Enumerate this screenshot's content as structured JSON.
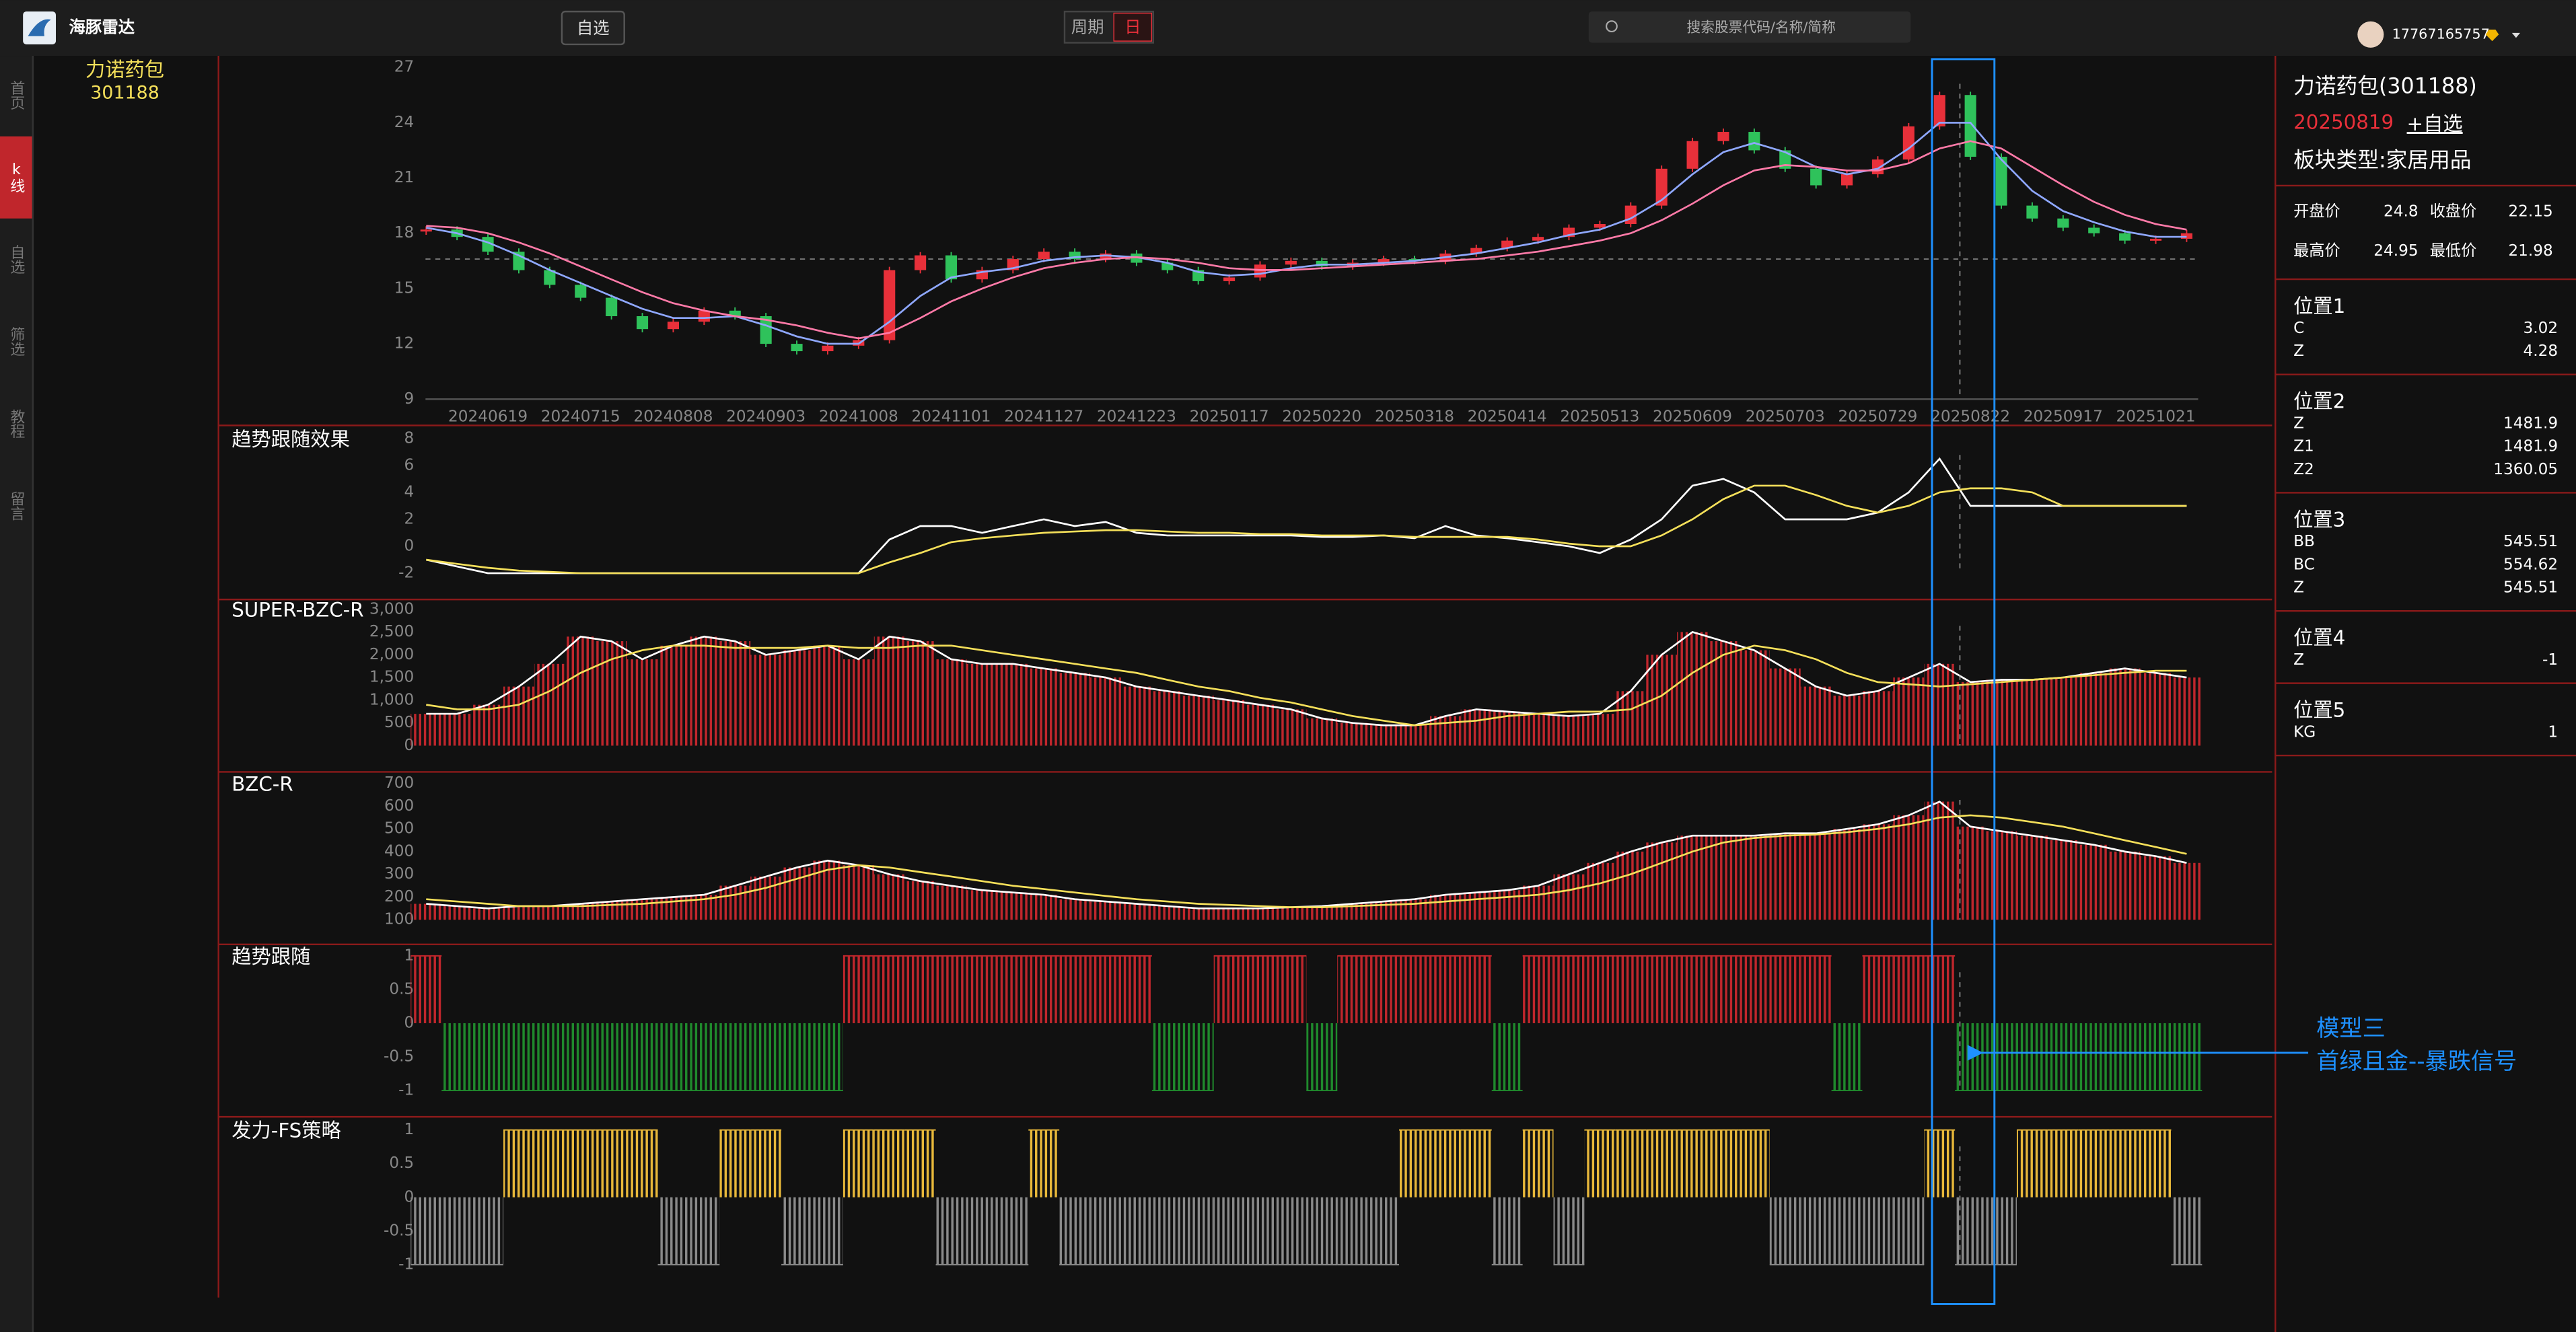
{
  "header": {
    "brand": "海豚雷达",
    "watchlist_button": "自选",
    "period_label": "周期",
    "period_value": "日",
    "search_placeholder": "搜索股票代码/名称/简称",
    "user": "17767165757"
  },
  "nav": [
    "首页",
    "k线",
    "自选",
    "筛选",
    "教程",
    "留言"
  ],
  "stock": {
    "name": "力诺药包",
    "code": "301188"
  },
  "info": {
    "title": "力诺药包(301188)",
    "date": "20250819",
    "add": "+自选",
    "sector": "板块类型:家居用品",
    "quote": [
      [
        "开盘价",
        24.8,
        "收盘价",
        22.15
      ],
      [
        "最高价",
        24.95,
        "最低价",
        21.98
      ]
    ],
    "positions": [
      {
        "name": "位置1",
        "rows": [
          [
            "C",
            3.02
          ],
          [
            "Z",
            4.28
          ]
        ]
      },
      {
        "name": "位置2",
        "rows": [
          [
            "Z",
            1481.9
          ],
          [
            "Z1",
            1481.9
          ],
          [
            "Z2",
            1360.05
          ]
        ]
      },
      {
        "name": "位置3",
        "rows": [
          [
            "BB",
            545.51
          ],
          [
            "BC",
            554.62
          ],
          [
            "Z",
            545.51
          ]
        ]
      },
      {
        "name": "位置4",
        "rows": [
          [
            "Z",
            -1
          ]
        ]
      },
      {
        "name": "位置5",
        "rows": [
          [
            "KG",
            1
          ]
        ]
      }
    ]
  },
  "annotation": {
    "lines": [
      "模型三",
      "首绿且金--暴跌信号"
    ]
  },
  "chart_data": [
    {
      "type": "candlestick",
      "ylim": [
        9,
        27
      ],
      "yticks": [
        9,
        12,
        15,
        18,
        21,
        24,
        27
      ],
      "hline": 16.6,
      "color_up": "#e8303a",
      "color_down": "#2fc25b",
      "categories": [
        null,
        null,
        "20240619",
        null,
        null,
        "20240715",
        null,
        null,
        "20240808",
        null,
        null,
        "20240903",
        null,
        null,
        "20241008",
        null,
        null,
        "20241101",
        null,
        null,
        "20241127",
        null,
        null,
        "20241223",
        null,
        null,
        "20250117",
        null,
        null,
        "20250220",
        null,
        null,
        "20250318",
        null,
        null,
        "20250414",
        null,
        null,
        "20250513",
        null,
        null,
        "20250609",
        null,
        null,
        "20250703",
        null,
        null,
        "20250729",
        null,
        null,
        "20250822",
        null,
        null,
        "20250917",
        null,
        null,
        "20251021",
        null
      ],
      "series": [
        {
          "values": [
            18.2,
            17.8,
            17.0,
            16.0,
            15.2,
            14.5,
            13.5,
            12.8,
            13.2,
            13.8,
            13.5,
            12.0,
            11.6,
            11.9,
            12.2,
            16.0,
            16.8,
            15.5,
            16.0,
            16.6,
            17.0,
            16.6,
            16.9,
            16.4,
            16.0,
            15.4,
            15.6,
            16.3,
            16.5,
            16.2,
            16.4,
            16.6,
            16.5,
            16.9,
            17.2,
            17.6,
            17.8,
            18.3,
            18.5,
            19.5,
            21.5,
            23.0,
            23.5,
            22.5,
            21.5,
            20.6,
            21.2,
            22.0,
            23.8,
            25.5,
            22.15,
            19.5,
            18.8,
            18.3,
            18.0,
            17.6,
            17.7,
            18.0
          ]
        },
        {
          "color": "#8fa8ff",
          "values": [
            18.3,
            18.0,
            17.5,
            16.8,
            16.0,
            15.3,
            14.6,
            13.9,
            13.4,
            13.4,
            13.5,
            13.0,
            12.4,
            12.0,
            12.0,
            13.2,
            14.6,
            15.6,
            15.9,
            16.1,
            16.5,
            16.7,
            16.8,
            16.7,
            16.4,
            15.9,
            15.7,
            15.8,
            16.1,
            16.3,
            16.3,
            16.4,
            16.5,
            16.7,
            16.9,
            17.2,
            17.5,
            17.9,
            18.2,
            18.8,
            19.8,
            21.2,
            22.4,
            22.9,
            22.4,
            21.6,
            21.2,
            21.5,
            22.6,
            24.0,
            24.0,
            22.0,
            20.3,
            19.2,
            18.6,
            18.1,
            17.8,
            17.8
          ]
        },
        {
          "color": "#ff7aa8",
          "values": [
            18.4,
            18.3,
            18.0,
            17.5,
            16.9,
            16.2,
            15.5,
            14.8,
            14.2,
            13.8,
            13.5,
            13.3,
            13.0,
            12.6,
            12.3,
            12.6,
            13.4,
            14.3,
            15.0,
            15.6,
            16.1,
            16.4,
            16.6,
            16.7,
            16.6,
            16.4,
            16.1,
            16.0,
            16.0,
            16.1,
            16.2,
            16.3,
            16.4,
            16.5,
            16.6,
            16.8,
            17.0,
            17.3,
            17.6,
            18.0,
            18.7,
            19.6,
            20.6,
            21.4,
            21.7,
            21.6,
            21.4,
            21.4,
            21.8,
            22.6,
            23.0,
            22.6,
            21.6,
            20.6,
            19.7,
            19.0,
            18.5,
            18.2
          ]
        }
      ]
    },
    {
      "type": "line",
      "title": "趋势跟随效果",
      "ylim": [
        -2,
        8
      ],
      "yticks": [
        -2,
        0,
        2,
        4,
        6,
        8
      ],
      "series": [
        {
          "color": "#ffffff",
          "values": [
            -1,
            -1.5,
            -2,
            -2,
            -2,
            -2,
            -2,
            -2,
            -2,
            -2,
            -2,
            -2,
            -2,
            -2,
            -2,
            0.5,
            1.5,
            1.5,
            1,
            1.5,
            2,
            1.5,
            1.8,
            1,
            0.8,
            0.8,
            0.8,
            0.8,
            0.8,
            0.7,
            0.7,
            0.8,
            0.6,
            1.5,
            0.8,
            0.6,
            0.3,
            0,
            -0.5,
            0.5,
            2,
            4.5,
            5,
            4,
            2,
            2,
            2,
            2.5,
            4,
            6.5,
            3,
            3,
            3,
            3,
            3,
            3,
            3,
            3
          ]
        },
        {
          "color": "#f5e05a",
          "values": [
            -1,
            -1.3,
            -1.6,
            -1.8,
            -1.9,
            -2,
            -2,
            -2,
            -2,
            -2,
            -2,
            -2,
            -2,
            -2,
            -2,
            -1.2,
            -0.5,
            0.3,
            0.6,
            0.8,
            1,
            1.1,
            1.2,
            1.2,
            1.1,
            1,
            1,
            0.9,
            0.9,
            0.8,
            0.8,
            0.8,
            0.7,
            0.7,
            0.7,
            0.7,
            0.5,
            0.2,
            0,
            0,
            0.8,
            2,
            3.5,
            4.5,
            4.5,
            3.8,
            3,
            2.5,
            3,
            4,
            4.3,
            4.3,
            4,
            3,
            3,
            3,
            3,
            3
          ]
        }
      ]
    },
    {
      "type": "bar",
      "title": "SUPER-BZC-R",
      "ylim": [
        0,
        3000
      ],
      "yticks": [
        0,
        500,
        {
          "value": 1000,
          "label": "1,000"
        },
        {
          "value": 1500,
          "label": "1,500"
        },
        {
          "value": 2000,
          "label": "2,000"
        },
        {
          "value": 2500,
          "label": "2,500"
        },
        {
          "value": 3000,
          "label": "3,000"
        }
      ],
      "bar_color": "#c0262c",
      "series": [
        {
          "color": "#ffffff",
          "values": [
            700,
            700,
            900,
            1300,
            1800,
            2400,
            2300,
            1900,
            2200,
            2400,
            2300,
            2000,
            2100,
            2200,
            1900,
            2400,
            2300,
            1900,
            1800,
            1800,
            1700,
            1600,
            1500,
            1300,
            1200,
            1100,
            1000,
            900,
            800,
            600,
            500,
            450,
            450,
            650,
            800,
            750,
            700,
            650,
            700,
            1200,
            2000,
            2500,
            2300,
            2100,
            1700,
            1300,
            1100,
            1200,
            1500,
            1800,
            1400,
            1450,
            1450,
            1500,
            1600,
            1700,
            1600,
            1500
          ]
        },
        {
          "color": "#f5e05a",
          "values": [
            900,
            800,
            800,
            900,
            1200,
            1600,
            1900,
            2100,
            2200,
            2200,
            2150,
            2150,
            2150,
            2200,
            2150,
            2150,
            2200,
            2200,
            2100,
            2000,
            1900,
            1800,
            1700,
            1600,
            1450,
            1300,
            1200,
            1050,
            950,
            800,
            650,
            550,
            450,
            500,
            550,
            650,
            700,
            750,
            750,
            800,
            1100,
            1600,
            2000,
            2200,
            2100,
            1900,
            1600,
            1400,
            1350,
            1300,
            1350,
            1400,
            1450,
            1500,
            1550,
            1600,
            1650,
            1650
          ]
        }
      ]
    },
    {
      "type": "bar",
      "title": "BZC-R",
      "ylim": [
        100,
        700
      ],
      "yticks": [
        100,
        200,
        300,
        400,
        500,
        600,
        700
      ],
      "bar_color": "#c0262c",
      "series": [
        {
          "color": "#ffffff",
          "values": [
            170,
            160,
            150,
            160,
            160,
            170,
            180,
            190,
            200,
            210,
            250,
            290,
            330,
            360,
            340,
            300,
            270,
            250,
            230,
            220,
            210,
            190,
            180,
            170,
            160,
            150,
            150,
            150,
            155,
            160,
            170,
            180,
            190,
            210,
            220,
            230,
            250,
            300,
            350,
            400,
            440,
            470,
            470,
            470,
            480,
            480,
            500,
            520,
            560,
            620,
            510,
            490,
            470,
            450,
            430,
            400,
            380,
            350
          ]
        },
        {
          "color": "#f5e05a",
          "values": [
            190,
            180,
            170,
            160,
            160,
            160,
            165,
            170,
            180,
            190,
            210,
            240,
            280,
            320,
            340,
            330,
            310,
            290,
            270,
            250,
            235,
            220,
            205,
            190,
            180,
            170,
            165,
            160,
            155,
            155,
            160,
            165,
            170,
            180,
            190,
            200,
            210,
            230,
            260,
            300,
            350,
            400,
            440,
            460,
            470,
            475,
            485,
            500,
            520,
            550,
            560,
            550,
            530,
            510,
            480,
            450,
            420,
            390
          ]
        }
      ]
    },
    {
      "type": "column",
      "title": "趋势跟随",
      "ylim": [
        -1,
        1
      ],
      "yticks": [
        -1,
        -0.5,
        0,
        0.5,
        1
      ],
      "color_up": "#c0262c",
      "color_down": "#1f8a2c",
      "values": [
        1,
        -1,
        -1,
        -1,
        -1,
        -1,
        -1,
        -1,
        -1,
        -1,
        -1,
        -1,
        -1,
        -1,
        1,
        1,
        1,
        1,
        1,
        1,
        1,
        1,
        1,
        1,
        -1,
        -1,
        1,
        1,
        1,
        -1,
        1,
        1,
        1,
        1,
        1,
        -1,
        1,
        1,
        1,
        1,
        1,
        1,
        1,
        1,
        1,
        1,
        -1,
        1,
        1,
        1,
        -1,
        -1,
        -1,
        -1,
        -1,
        -1,
        -1,
        -1
      ]
    },
    {
      "type": "column",
      "title": "发力-FS策略",
      "ylim": [
        -1,
        1
      ],
      "yticks": [
        -1,
        -0.5,
        0,
        0.5,
        1
      ],
      "color_up": "#e8b83a",
      "color_down": "#8a8a8a",
      "values": [
        -1,
        -1,
        -1,
        1,
        1,
        1,
        1,
        1,
        -1,
        -1,
        1,
        1,
        -1,
        -1,
        1,
        1,
        1,
        -1,
        -1,
        -1,
        1,
        -1,
        -1,
        -1,
        -1,
        -1,
        -1,
        -1,
        -1,
        -1,
        -1,
        -1,
        1,
        1,
        1,
        -1,
        1,
        -1,
        1,
        1,
        1,
        1,
        1,
        1,
        -1,
        -1,
        -1,
        -1,
        -1,
        1,
        -1,
        -1,
        1,
        1,
        1,
        1,
        1,
        -1
      ]
    }
  ]
}
